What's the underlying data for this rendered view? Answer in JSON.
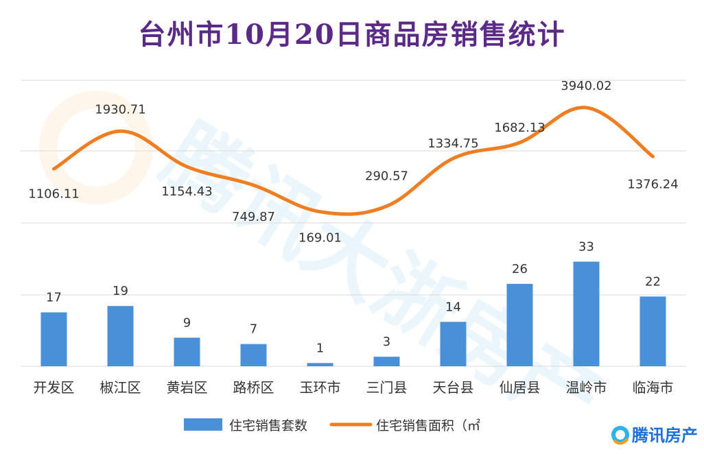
{
  "chart_data": {
    "type": "bar",
    "title": "台州市10月20日商品房销售统计",
    "categories": [
      "开发区",
      "椒江区",
      "黄岩区",
      "路桥区",
      "玉环市",
      "三门县",
      "天台县",
      "仙居县",
      "温岭市",
      "临海市"
    ],
    "series": [
      {
        "name": "住宅销售套数",
        "type": "bar",
        "color": "#4a90d9",
        "values": [
          17,
          19,
          9,
          7,
          1,
          3,
          14,
          26,
          33,
          22
        ],
        "labels": [
          "17",
          "19",
          "9",
          "7",
          "1",
          "3",
          "14",
          "26",
          "33",
          "22"
        ]
      },
      {
        "name": "住宅销售面积（㎡）",
        "legend_label": "住宅销售面积（㎡",
        "type": "line",
        "color": "#ef7d22",
        "values": [
          1106.11,
          1930.71,
          1154.43,
          749.87,
          169.01,
          290.57,
          1334.75,
          1682.13,
          3940.02,
          1376.24
        ],
        "labels": [
          "1106.11",
          "1930.71",
          "1154.43",
          "749.87",
          "169.01",
          "290.57",
          "1334.75",
          "1682.13",
          "3940.02",
          "1376.24"
        ]
      }
    ],
    "grid": true,
    "legend": "bottom"
  },
  "watermark": {
    "text": "腾讯大浙房产"
  },
  "logo": {
    "text": "腾讯房产",
    "icon": "tencent-house-logo-icon"
  }
}
